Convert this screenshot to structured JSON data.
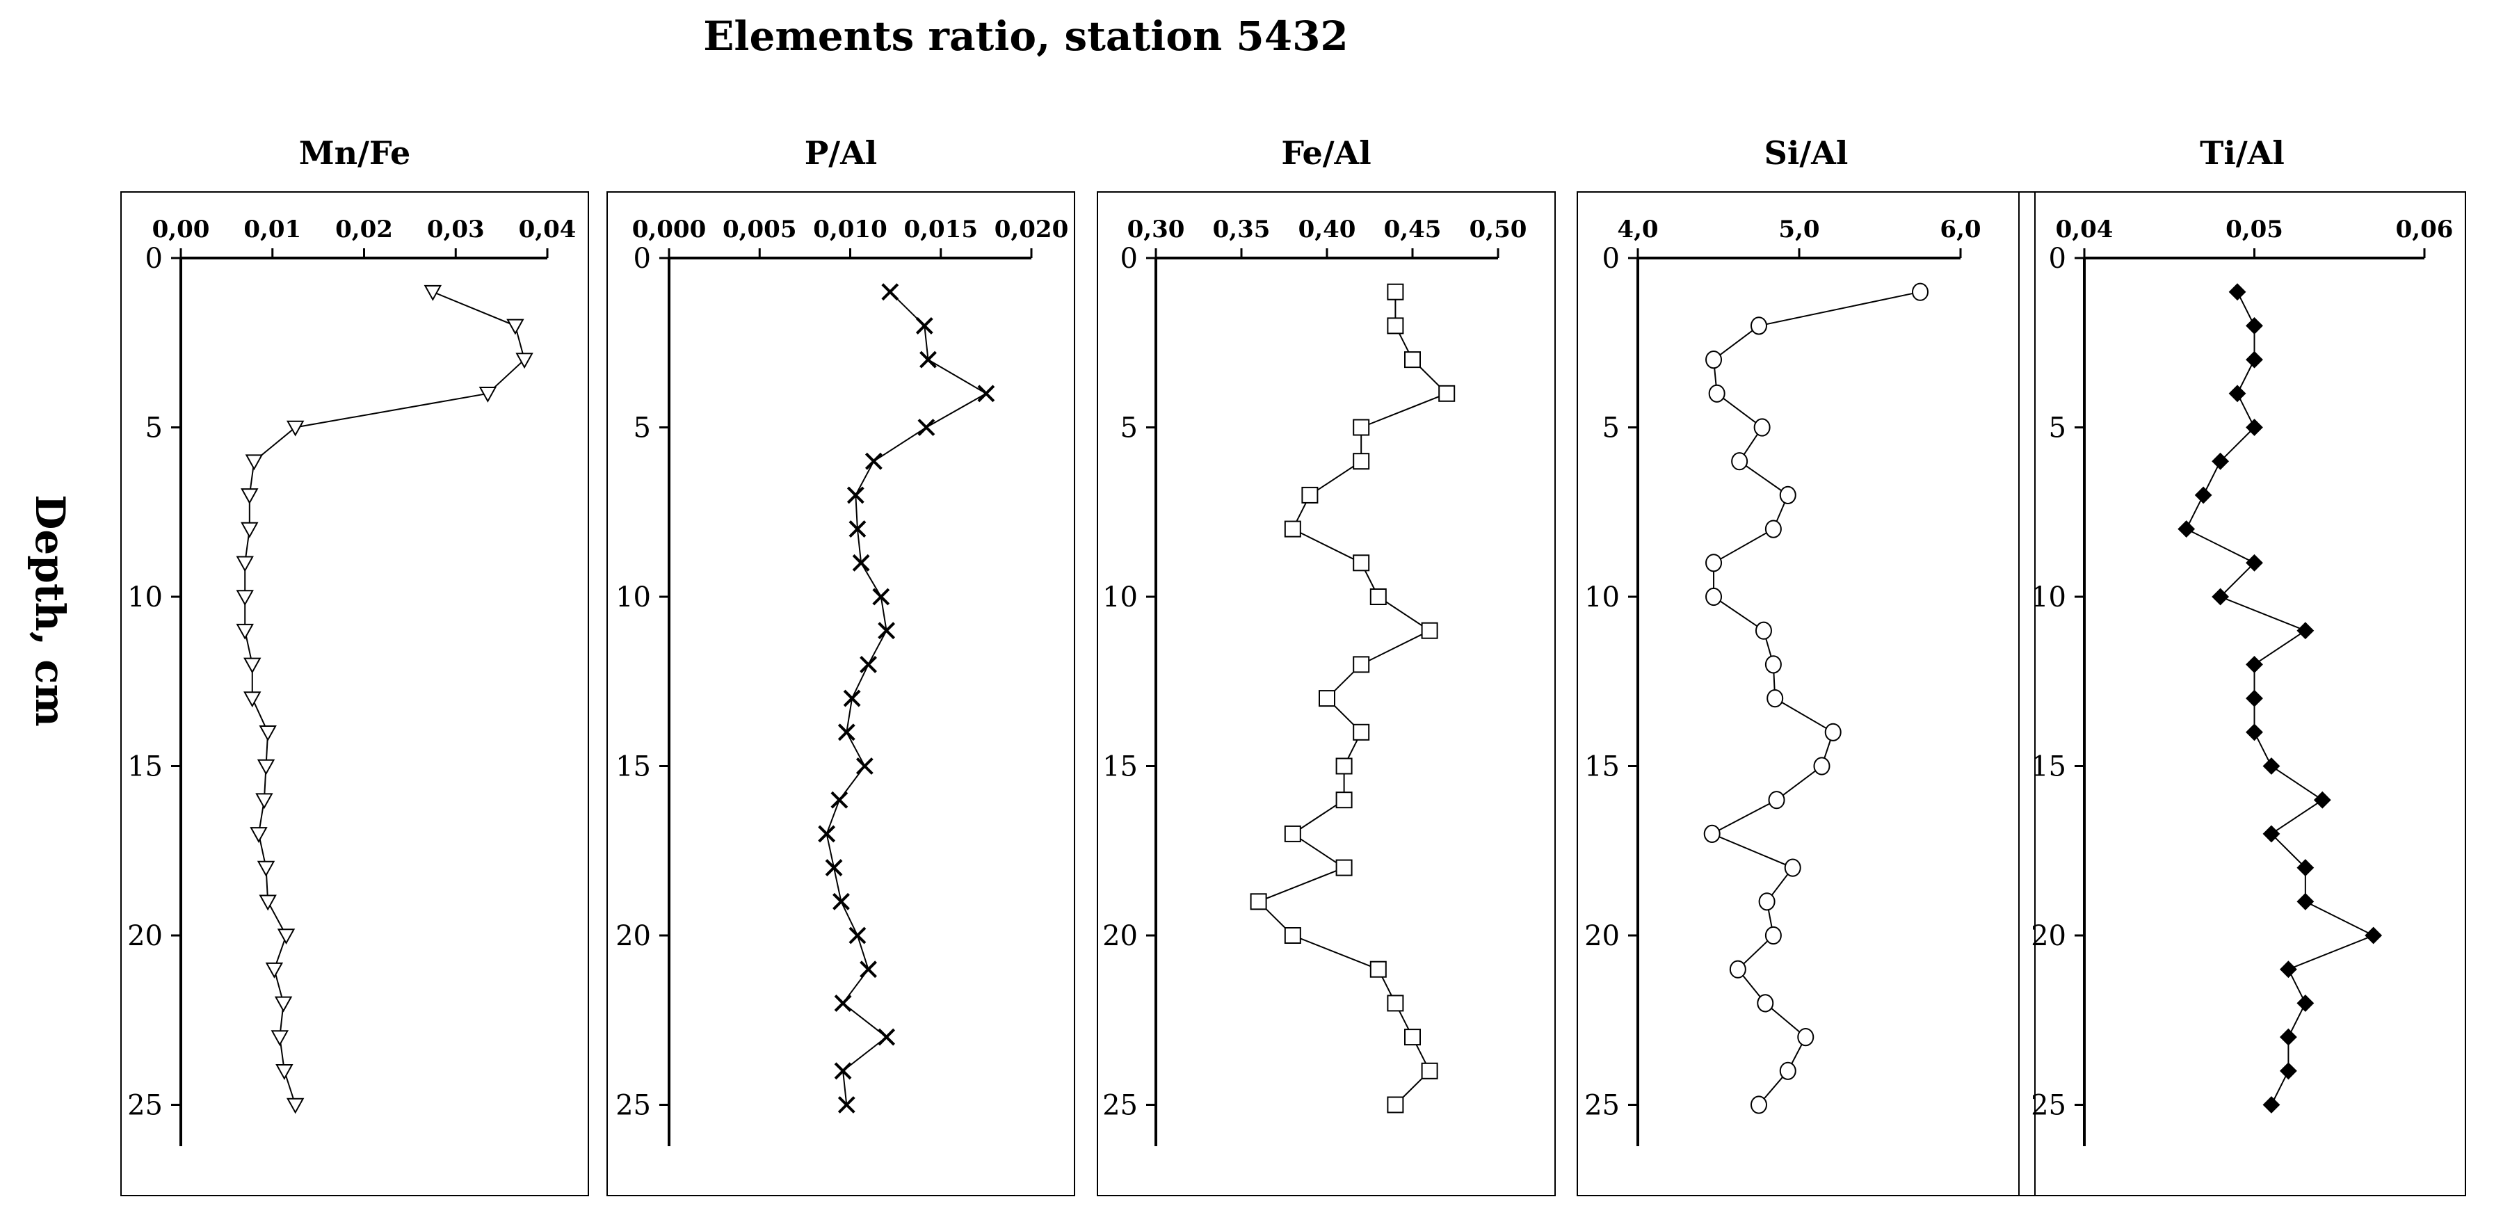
{
  "title": "Elements ratio,  station 5432",
  "ylabel": "Depth, cm",
  "chart_data": [
    {
      "type": "line",
      "title": "Mn/Fe",
      "xlim": [
        0,
        0.04
      ],
      "xticks": [
        "0,00",
        "0,01",
        "0,02",
        "0,03",
        "0,04"
      ],
      "ylim": [
        0,
        26
      ],
      "yticks": [
        "0",
        "5",
        "10",
        "15",
        "20",
        "25"
      ],
      "marker": "triangle-down-open",
      "series": [
        {
          "y": [
            1,
            2,
            3,
            4,
            5,
            6,
            7,
            8,
            9,
            10,
            11,
            12,
            13,
            14,
            15,
            16,
            17,
            18,
            19,
            20,
            21,
            22,
            23,
            24,
            25
          ],
          "values": [
            0.0275,
            0.0365,
            0.0375,
            0.0335,
            0.0125,
            0.008,
            0.0075,
            0.0075,
            0.007,
            0.007,
            0.007,
            0.0078,
            0.0078,
            0.0095,
            0.0093,
            0.0091,
            0.0085,
            0.0093,
            0.0095,
            0.0115,
            0.0102,
            0.0112,
            0.0108,
            0.0113,
            0.0125
          ]
        }
      ]
    },
    {
      "type": "line",
      "title": "P/Al",
      "xlim": [
        0,
        0.02
      ],
      "xticks": [
        "0,000",
        "0,005",
        "0,010",
        "0,015",
        "0,020"
      ],
      "ylim": [
        0,
        26
      ],
      "yticks": [
        "0",
        "5",
        "10",
        "15",
        "20",
        "25"
      ],
      "marker": "x",
      "series": [
        {
          "y": [
            1,
            2,
            3,
            4,
            5,
            6,
            7,
            8,
            9,
            10,
            11,
            12,
            13,
            14,
            15,
            16,
            17,
            18,
            19,
            20,
            21,
            22,
            23,
            24,
            25
          ],
          "values": [
            0.0122,
            0.0141,
            0.0143,
            0.0175,
            0.0142,
            0.0113,
            0.0103,
            0.0104,
            0.0106,
            0.0117,
            0.012,
            0.011,
            0.0101,
            0.0098,
            0.0108,
            0.0094,
            0.0087,
            0.0091,
            0.0095,
            0.0104,
            0.011,
            0.0096,
            0.012,
            0.0096,
            0.0098
          ]
        }
      ]
    },
    {
      "type": "line",
      "title": "Fe/Al",
      "xlim": [
        0.3,
        0.5
      ],
      "xticks": [
        "0,30",
        "0,35",
        "0,40",
        "0,45",
        "0,50"
      ],
      "ylim": [
        0,
        26
      ],
      "yticks": [
        "0",
        "5",
        "10",
        "15",
        "20",
        "25"
      ],
      "marker": "square-open",
      "series": [
        {
          "y": [
            1,
            2,
            3,
            4,
            5,
            6,
            7,
            8,
            9,
            10,
            11,
            12,
            13,
            14,
            15,
            16,
            17,
            18,
            19,
            20,
            21,
            22,
            23,
            24,
            25
          ],
          "values": [
            0.44,
            0.44,
            0.45,
            0.47,
            0.42,
            0.42,
            0.39,
            0.38,
            0.42,
            0.43,
            0.46,
            0.42,
            0.4,
            0.42,
            0.41,
            0.41,
            0.38,
            0.41,
            0.36,
            0.38,
            0.43,
            0.44,
            0.45,
            0.46,
            0.44
          ]
        }
      ]
    },
    {
      "type": "line",
      "title": "Si/Al",
      "xlim": [
        4.0,
        6.0
      ],
      "xticks": [
        "4,0",
        "5,0",
        "6,0"
      ],
      "ylim": [
        0,
        26
      ],
      "yticks": [
        "0",
        "5",
        "10",
        "15",
        "20",
        "25"
      ],
      "marker": "circle-open",
      "series": [
        {
          "y": [
            1,
            2,
            3,
            4,
            5,
            6,
            7,
            8,
            9,
            10,
            11,
            12,
            13,
            14,
            15,
            16,
            17,
            18,
            19,
            20,
            21,
            22,
            23,
            24,
            25
          ],
          "values": [
            5.75,
            4.75,
            4.47,
            4.49,
            4.77,
            4.63,
            4.93,
            4.84,
            4.47,
            4.47,
            4.78,
            4.84,
            4.85,
            5.21,
            5.14,
            4.86,
            4.46,
            4.96,
            4.8,
            4.84,
            4.62,
            4.79,
            5.04,
            4.93,
            4.75
          ]
        }
      ]
    },
    {
      "type": "line",
      "title": "Ti/Al",
      "xlim": [
        0.04,
        0.06
      ],
      "xticks": [
        "0,04",
        "0,05",
        "0,06"
      ],
      "ylim": [
        0,
        26
      ],
      "yticks": [
        "0",
        "5",
        "10",
        "15",
        "20",
        "25"
      ],
      "marker": "diamond-filled",
      "series": [
        {
          "y": [
            1,
            2,
            3,
            4,
            5,
            6,
            7,
            8,
            9,
            10,
            11,
            12,
            13,
            14,
            15,
            16,
            17,
            18,
            19,
            20,
            21,
            22,
            23,
            24,
            25
          ],
          "values": [
            0.049,
            0.05,
            0.05,
            0.049,
            0.05,
            0.048,
            0.047,
            0.046,
            0.05,
            0.048,
            0.053,
            0.05,
            0.05,
            0.05,
            0.051,
            0.054,
            0.051,
            0.053,
            0.053,
            0.057,
            0.052,
            0.053,
            0.052,
            0.052,
            0.051
          ]
        }
      ]
    }
  ]
}
